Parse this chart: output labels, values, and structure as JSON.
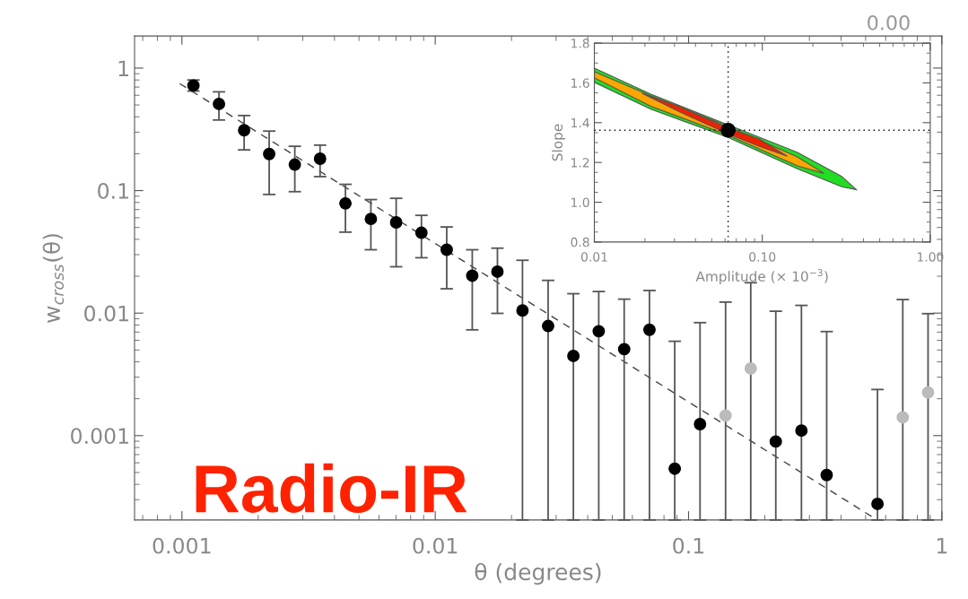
{
  "chart_data": [
    {
      "type": "scatter",
      "xlabel": "θ (degrees)",
      "ylabel": "w$_{cross}$(θ)",
      "log": "xy",
      "grid": false,
      "legend": false,
      "xlim": [
        0.00065,
        1.0
      ],
      "ylim": [
        0.000205,
        1.83
      ],
      "xticks": [
        0.001,
        0.01,
        0.1,
        1
      ],
      "yticks": [
        0.001,
        0.01,
        0.1,
        1
      ],
      "series": [
        {
          "color": "#000000",
          "marker": "circle",
          "x": [
            0.00111,
            0.0014,
            0.00176,
            0.00221,
            0.00279,
            0.00351,
            0.00442,
            0.00557,
            0.00701,
            0.00882,
            0.0111,
            0.014,
            0.0176,
            0.0221,
            0.0279,
            0.0351,
            0.0442,
            0.0557,
            0.0701,
            0.0882,
            0.111,
            0.221,
            0.279,
            0.351,
            0.557
          ],
          "values": [
            0.72,
            0.51,
            0.311,
            0.199,
            0.163,
            0.182,
            0.0786,
            0.0587,
            0.055,
            0.0453,
            0.0329,
            0.0202,
            0.0218,
            0.0105,
            0.00785,
            0.00447,
            0.00712,
            0.00508,
            0.00731,
            0.000537,
            0.00124,
            0.000895,
            0.0011,
            0.000477,
            0.000277
          ],
          "errors": [
            [
              0.65,
              0.8
            ],
            [
              0.377,
              0.64
            ],
            [
              0.215,
              0.41
            ],
            [
              0.093,
              0.306
            ],
            [
              0.098,
              0.23
            ],
            [
              0.13,
              0.235
            ],
            [
              0.0458,
              0.1125
            ],
            [
              0.0329,
              0.0845
            ],
            [
              0.0239,
              0.0865
            ],
            [
              0.0283,
              0.0628
            ],
            [
              0.0158,
              0.0505
            ],
            [
              0.0073,
              0.0329
            ],
            [
              0.00995,
              0.0339
            ],
            [
              0.000205,
              0.027
            ],
            [
              0.000205,
              0.0185
            ],
            [
              0.000205,
              0.0144
            ],
            [
              0.000205,
              0.015
            ],
            [
              0.000205,
              0.013
            ],
            [
              0.000205,
              0.0153
            ],
            [
              0.000205,
              0.00589
            ],
            [
              0.000205,
              0.00836
            ],
            [
              0.000205,
              0.01036
            ],
            [
              0.000205,
              0.01156
            ],
            [
              0.000205,
              0.00707
            ],
            [
              0.000205,
              0.00238
            ]
          ]
        },
        {
          "color": "#bbbbbb",
          "marker": "circle",
          "x": [
            0.14,
            0.176,
            0.442,
            0.701,
            0.882
          ],
          "values": [
            0.00146,
            0.00353,
            null,
            0.00141,
            0.00225
          ],
          "errors": [
            [
              0.000205,
              0.0123
            ],
            [
              0.000205,
              0.0177
            ],
            null,
            [
              0.000205,
              0.0129
            ],
            [
              0.000205,
              0.0099
            ]
          ]
        },
        {
          "type": "line",
          "color": "#444444",
          "line_style": "dashed",
          "x": [
            0.00098,
            0.555
          ],
          "values": [
            0.747,
            0.000205
          ]
        }
      ],
      "annotations": [
        "Radio-IR",
        "0.00"
      ]
    },
    {
      "type": "area",
      "xlabel": "Amplitude (× 10$^{−3}$)",
      "ylabel": "Slope",
      "log": "x",
      "grid": false,
      "legend": false,
      "xlim": [
        0.01,
        1.0
      ],
      "ylim": [
        0.8,
        1.8
      ],
      "xticks": [
        0.01,
        {
          "value": 0.1,
          "label": "0.10"
        },
        {
          "value": 1.0,
          "label": "1.00"
        }
      ],
      "yticks": [
        0.8,
        {
          "value": 1.0,
          "label": "1.0"
        },
        1.2,
        1.4,
        1.6,
        1.8
      ],
      "series": [
        {
          "color": "#22dd22",
          "x": [
            0.01,
            0.0217,
            0.0626,
            0.162,
            0.297,
            0.363,
            0.297,
            0.162,
            0.0626,
            0.0217,
            0.01
          ],
          "values": [
            1.674,
            1.543,
            1.389,
            1.25,
            1.13,
            1.063,
            1.078,
            1.168,
            1.326,
            1.468,
            1.603
          ]
        },
        {
          "color": "#ffa500",
          "x": [
            0.01,
            0.0217,
            0.0626,
            0.162,
            0.233,
            0.162,
            0.0626,
            0.0217,
            0.01
          ],
          "values": [
            1.656,
            1.536,
            1.381,
            1.228,
            1.145,
            1.183,
            1.337,
            1.483,
            1.626
          ]
        },
        {
          "color": "#ee2200",
          "x": [
            0.0192,
            0.0324,
            0.0626,
            0.096,
            0.141,
            0.096,
            0.0626,
            0.0324
          ],
          "values": [
            1.548,
            1.48,
            1.373,
            1.318,
            1.231,
            1.281,
            1.344,
            1.453
          ]
        },
        {
          "type": "scatter",
          "color": "#000000",
          "marker": "circle",
          "x": [
            0.0626
          ],
          "values": [
            1.362
          ]
        }
      ],
      "ref_lines": [
        {
          "axis": "x",
          "value": 0.0626,
          "line_style": "dotted",
          "color": "#000000"
        },
        {
          "axis": "y",
          "value": 1.362,
          "line_style": "dotted",
          "color": "#000000"
        }
      ]
    }
  ]
}
